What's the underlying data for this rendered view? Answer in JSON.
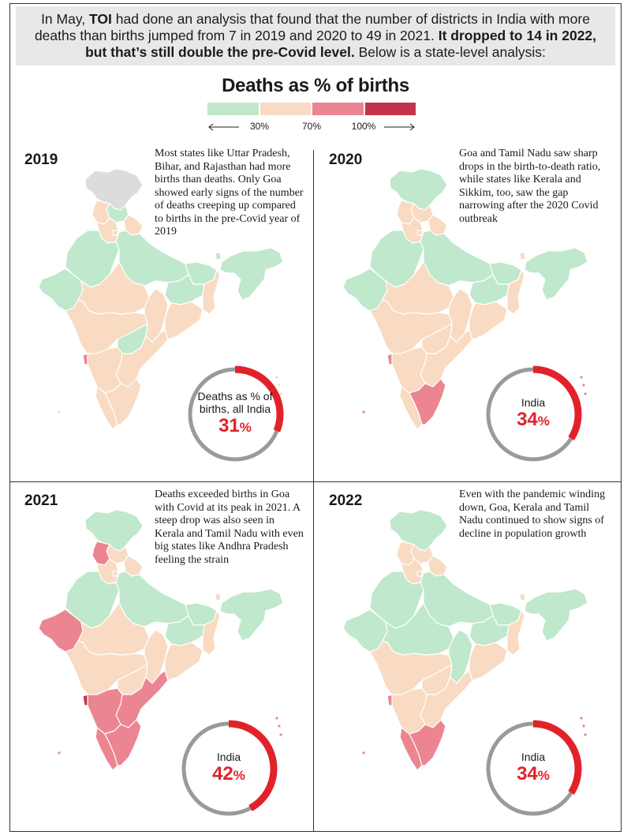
{
  "intro": {
    "part1": "In May, ",
    "bold1": "TOI",
    "part2": " had done an analysis that found that the number of districts in India with more deaths than births jumped from 7 in 2019 and 2020 to 49 in 2021. ",
    "bold2": "It dropped to 14 in 2022, but that’s still double the pre-Covid level.",
    "part3": " Below is a state-level analysis:"
  },
  "legend": {
    "title": "Deaths as % of births",
    "colors": [
      "#bfe8cd",
      "#f8dbc2",
      "#ec8592",
      "#c3344a"
    ],
    "ticks": [
      "30%",
      "70%",
      "100%"
    ]
  },
  "colors": {
    "green": "#bfe8cd",
    "peach": "#f8dbc2",
    "pink": "#ec8592",
    "red": "#c3344a",
    "gray": "#dcdcdc",
    "ring_gray": "#9a9a9a",
    "ring_red": "#e2222a"
  },
  "panels": [
    {
      "year": "2019",
      "note": "Most states like Uttar Pradesh, Bihar, and Rajasthan had more births than deaths. Only Goa showed early signs of the number of deaths creeping up compared to births in the pre-Covid year of 2019",
      "ring_label": "Deaths as % of births, all India",
      "ring_value": "31",
      "ring_unit": "%",
      "ring_fraction": 0.31,
      "states": {
        "jk": "gray",
        "hp": "green",
        "pb": "peach",
        "uk": "peach",
        "hr": "peach",
        "dl": "peach",
        "rj": "green",
        "up": "green",
        "br": "green",
        "gj": "green",
        "mp": "peach",
        "cg": "peach",
        "jh": "green",
        "wb": "peach",
        "od": "peach",
        "mh": "peach",
        "tg": "green",
        "ap": "peach",
        "ka": "peach",
        "goa": "pink",
        "kl": "peach",
        "tn": "peach",
        "ne": "green",
        "sk": "green"
      }
    },
    {
      "year": "2020",
      "note": "Goa and Tamil Nadu saw sharp drops in the birth-to-death ratio, while states like Kerala and Sikkim, too, saw the gap narrowing after the 2020 Covid outbreak",
      "ring_label": "India",
      "ring_value": "34",
      "ring_unit": "%",
      "ring_fraction": 0.34,
      "states": {
        "jk": "green",
        "hp": "peach",
        "pb": "peach",
        "uk": "peach",
        "hr": "peach",
        "dl": "peach",
        "rj": "green",
        "up": "green",
        "br": "green",
        "gj": "green",
        "mp": "peach",
        "cg": "peach",
        "jh": "green",
        "wb": "peach",
        "od": "peach",
        "mh": "peach",
        "tg": "peach",
        "ap": "peach",
        "ka": "peach",
        "goa": "pink",
        "kl": "peach",
        "tn": "pink",
        "ne": "green",
        "sk": "peach"
      }
    },
    {
      "year": "2021",
      "note": "Deaths exceeded births in Goa with Covid at its peak in 2021. A steep drop was also seen in Kerala and Tamil Nadu with even big states like Andhra Pradesh feeling the strain",
      "ring_label": "India",
      "ring_value": "42",
      "ring_unit": "%",
      "ring_fraction": 0.42,
      "states": {
        "jk": "green",
        "hp": "peach",
        "pb": "pink",
        "uk": "peach",
        "hr": "peach",
        "dl": "peach",
        "rj": "green",
        "up": "green",
        "br": "green",
        "gj": "pink",
        "mp": "peach",
        "cg": "peach",
        "jh": "green",
        "wb": "peach",
        "od": "peach",
        "mh": "peach",
        "tg": "peach",
        "ap": "pink",
        "ka": "pink",
        "goa": "red",
        "kl": "pink",
        "tn": "pink",
        "ne": "green",
        "sk": "peach"
      }
    },
    {
      "year": "2022",
      "note": "Even with the pandemic winding down, Goa, Kerala and Tamil Nadu continued to show signs of decline in population growth",
      "ring_label": "India",
      "ring_value": "34",
      "ring_unit": "%",
      "ring_fraction": 0.34,
      "states": {
        "jk": "green",
        "hp": "peach",
        "pb": "peach",
        "uk": "peach",
        "hr": "peach",
        "dl": "peach",
        "rj": "green",
        "up": "green",
        "br": "green",
        "gj": "green",
        "mp": "green",
        "cg": "green",
        "jh": "green",
        "wb": "peach",
        "od": "peach",
        "mh": "peach",
        "tg": "peach",
        "ap": "peach",
        "ka": "peach",
        "goa": "pink",
        "kl": "pink",
        "tn": "pink",
        "ne": "green",
        "sk": "peach"
      }
    }
  ]
}
